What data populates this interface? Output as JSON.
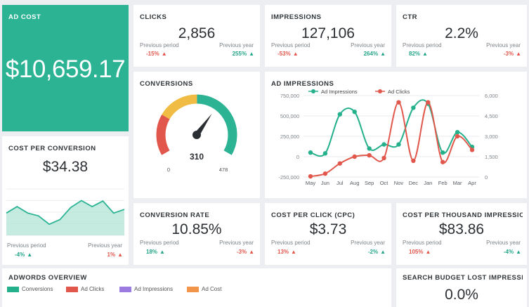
{
  "ad_cost": {
    "title": "AD COST",
    "value": "$10,659.17"
  },
  "clicks": {
    "title": "CLICKS",
    "value": "2,856",
    "prev_period_label": "Previous period",
    "prev_period_value": "-15%",
    "prev_year_label": "Previous year",
    "prev_year_value": "255%"
  },
  "impressions": {
    "title": "IMPRESSIONS",
    "value": "127,106",
    "prev_period_label": "Previous period",
    "prev_period_value": "-53%",
    "prev_year_label": "Previous year",
    "prev_year_value": "264%"
  },
  "ctr": {
    "title": "CTR",
    "value": "2.2%",
    "prev_period_label": "Previous period",
    "prev_period_value": "82%",
    "prev_year_label": "Previous year",
    "prev_year_value": "-3%"
  },
  "conversions": {
    "title": "CONVERSIONS",
    "value": "310",
    "min": "0",
    "max": "478"
  },
  "cost_per_conversion": {
    "title": "COST PER CONVERSION",
    "value": "$34.38",
    "prev_period_label": "Previous period",
    "prev_period_value": "-4%",
    "prev_year_label": "Previous year",
    "prev_year_value": "1%"
  },
  "conversion_rate": {
    "title": "CONVERSION RATE",
    "value": "10.85%",
    "prev_period_label": "Previous period",
    "prev_period_value": "18%",
    "prev_year_label": "Previous year",
    "prev_year_value": "-3%"
  },
  "cpc": {
    "title": "COST PER CLICK (CPC)",
    "value": "$3.73",
    "prev_period_label": "Previous period",
    "prev_period_value": "13%",
    "prev_year_label": "Previous year",
    "prev_year_value": "-2%"
  },
  "cpm": {
    "title": "COST PER THOUSAND IMPRESSIONS",
    "value": "$83.86",
    "prev_period_label": "Previous period",
    "prev_period_value": "105%",
    "prev_year_label": "Previous year",
    "prev_year_value": "-4%"
  },
  "adwords": {
    "title": "ADWORDS OVERVIEW",
    "legend": [
      {
        "label": "Conversions",
        "color": "#25b08c"
      },
      {
        "label": "Ad Clicks",
        "color": "#e2574c"
      },
      {
        "label": "Ad Impressions",
        "color": "#9b7be0"
      },
      {
        "label": "Ad Cost",
        "color": "#f0954a"
      }
    ]
  },
  "search_budget": {
    "title": "SEARCH BUDGET LOST IMPRESSIONS",
    "value": "0.0%"
  },
  "colors": {
    "teal": "#2bb394",
    "red": "#e2574c",
    "yellow": "#f0bc44",
    "dark": "#2b2f33"
  },
  "chart_data": [
    {
      "type": "line",
      "title": "AD IMPRESSIONS",
      "categories": [
        "May",
        "Jun",
        "Jul",
        "Aug",
        "Sep",
        "Oct",
        "Nov",
        "Dec",
        "Jan",
        "Feb",
        "Mar",
        "Apr"
      ],
      "series": [
        {
          "name": "Ad Impressions",
          "axis": "left",
          "color": "#25b08c",
          "values": [
            50000,
            40000,
            520000,
            550000,
            100000,
            150000,
            150000,
            600000,
            650000,
            50000,
            300000,
            120000
          ]
        },
        {
          "name": "Ad Clicks",
          "axis": "right",
          "color": "#e2574c",
          "values": [
            50,
            250,
            1000,
            1500,
            1600,
            1400,
            5500,
            1200,
            5500,
            1100,
            3000,
            2000
          ]
        }
      ],
      "ylim_left": [
        -250000,
        750000
      ],
      "yticks_left": [
        "750,000",
        "500,000",
        "250,000",
        "0",
        "-250,000"
      ],
      "ylim_right": [
        0,
        6000
      ],
      "yticks_right": [
        "6,000",
        "4,500",
        "3,000",
        "1,500",
        "0"
      ],
      "legend": "top-left",
      "grid": true
    },
    {
      "type": "area",
      "title": "",
      "values": [
        48,
        62,
        48,
        42,
        24,
        34,
        60,
        75,
        62,
        74,
        48,
        56
      ],
      "ylim": [
        0,
        100
      ],
      "color": "#2bb394",
      "grid": true
    },
    {
      "type": "gauge",
      "value": 310,
      "min": 0,
      "max": 478,
      "segments": [
        {
          "from": 0,
          "to": 120,
          "color": "#e2574c"
        },
        {
          "from": 120,
          "to": 240,
          "color": "#f0bc44"
        },
        {
          "from": 240,
          "to": 478,
          "color": "#2bb394"
        }
      ]
    }
  ]
}
